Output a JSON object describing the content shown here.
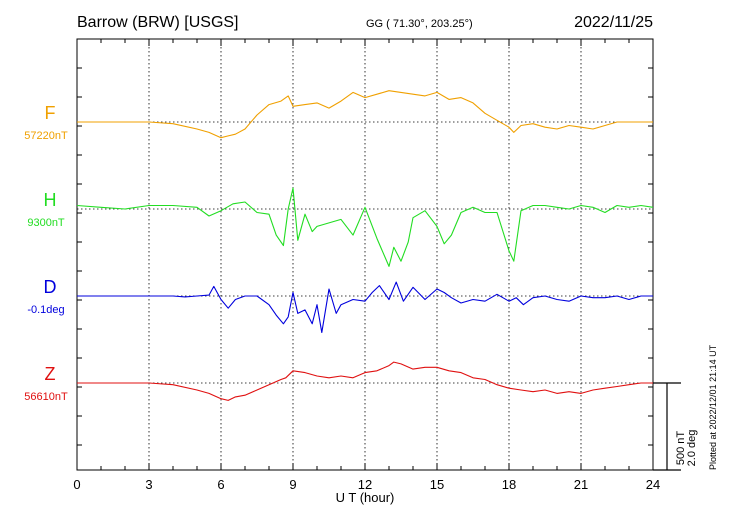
{
  "chart_data": {
    "type": "line",
    "header": {
      "station": "Barrow (BRW)  [USGS]",
      "coords": "GG ( 71.30°, 203.25°)",
      "date": "2022/11/25"
    },
    "xlabel": "U T (hour)",
    "xlim": [
      0,
      24
    ],
    "x_ticks": [
      0,
      3,
      6,
      9,
      12,
      15,
      18,
      21,
      24
    ],
    "grid": true,
    "scale_bar": {
      "line1": "500 nT",
      "line2": "2.0 deg"
    },
    "plotted_note": "Plotted at 2022/12/01 21:14 UT",
    "series": [
      {
        "name": "F",
        "baseline_label": "57220nT",
        "color": "#f0a000",
        "x": [
          0,
          1,
          2,
          3,
          4,
          5,
          5.5,
          6,
          6.3,
          6.6,
          7,
          7.5,
          8,
          8.5,
          8.8,
          9,
          9.5,
          10,
          10.5,
          11,
          11.5,
          12,
          12.5,
          13,
          13.5,
          14,
          14.5,
          15,
          15.5,
          16,
          16.5,
          17,
          17.5,
          18,
          18.2,
          18.5,
          19,
          19.5,
          20,
          20.5,
          21,
          21.5,
          22,
          22.5,
          23,
          23.5,
          24
        ],
        "y": [
          0,
          0,
          0,
          0,
          -10,
          -40,
          -60,
          -90,
          -80,
          -70,
          -40,
          40,
          100,
          120,
          150,
          90,
          100,
          110,
          80,
          120,
          170,
          140,
          160,
          180,
          170,
          160,
          150,
          170,
          130,
          140,
          110,
          50,
          10,
          -30,
          -60,
          -20,
          -10,
          -30,
          -40,
          -20,
          -30,
          -40,
          -20,
          0,
          0,
          0,
          0
        ]
      },
      {
        "name": "H",
        "baseline_label": "9300nT",
        "color": "#22dd22",
        "x": [
          0,
          1,
          2,
          3,
          4,
          5,
          5.5,
          6,
          6.5,
          7,
          7.5,
          8,
          8.3,
          8.6,
          8.8,
          9,
          9.2,
          9.5,
          9.8,
          10,
          10.5,
          11,
          11.5,
          12,
          12.5,
          13,
          13.2,
          13.5,
          13.8,
          14,
          14.5,
          15,
          15.3,
          15.6,
          16,
          16.5,
          17,
          17.5,
          18,
          18.2,
          18.5,
          19,
          19.5,
          20,
          20.5,
          21,
          21.5,
          22,
          22.5,
          23,
          23.5,
          24
        ],
        "y": [
          20,
          10,
          0,
          20,
          20,
          10,
          -40,
          -10,
          30,
          40,
          -20,
          -30,
          -150,
          -210,
          0,
          120,
          -180,
          -30,
          -130,
          -100,
          -80,
          -60,
          -150,
          10,
          -170,
          -330,
          -220,
          -300,
          -190,
          -50,
          -10,
          -100,
          -200,
          -150,
          -20,
          10,
          -20,
          -20,
          -240,
          -300,
          -10,
          20,
          20,
          10,
          0,
          20,
          10,
          -20,
          20,
          10,
          20,
          10
        ]
      },
      {
        "name": "D",
        "baseline_label": "-0.1deg",
        "color": "#0000dd",
        "x": [
          0,
          1,
          2,
          3,
          4,
          4.5,
          5,
          5.5,
          5.7,
          6,
          6.3,
          6.6,
          7,
          7.5,
          8,
          8.3,
          8.6,
          8.8,
          9,
          9.2,
          9.5,
          9.8,
          10,
          10.2,
          10.5,
          10.8,
          11,
          11.5,
          12,
          12.3,
          12.6,
          13,
          13.3,
          13.6,
          14,
          14.5,
          15,
          15.3,
          15.6,
          16,
          16.5,
          17,
          17.5,
          18,
          18.3,
          18.6,
          19,
          19.5,
          20,
          20.5,
          21,
          21.5,
          22,
          22.5,
          23,
          23.5,
          24
        ],
        "y": [
          0,
          0,
          0,
          0,
          0,
          -5,
          0,
          5,
          55,
          -20,
          -70,
          -20,
          0,
          0,
          -50,
          -110,
          -160,
          -120,
          20,
          -100,
          -80,
          -160,
          -50,
          -210,
          40,
          -100,
          -50,
          -20,
          -30,
          20,
          60,
          -20,
          80,
          -30,
          50,
          -20,
          40,
          20,
          -10,
          -40,
          -20,
          -30,
          10,
          -30,
          -10,
          -50,
          -10,
          0,
          -20,
          -30,
          0,
          -10,
          -10,
          0,
          -20,
          0,
          0
        ]
      },
      {
        "name": "Z",
        "baseline_label": "56610nT",
        "color": "#e01010",
        "x": [
          0,
          1,
          2,
          3,
          4,
          5,
          5.5,
          6,
          6.3,
          6.6,
          7,
          7.5,
          8,
          8.5,
          8.7,
          9,
          9.5,
          10,
          10.5,
          11,
          11.5,
          12,
          12.5,
          13,
          13.2,
          13.5,
          14,
          14.5,
          15,
          15.5,
          16,
          16.5,
          17,
          17.5,
          18,
          18.5,
          19,
          19.5,
          20,
          20.5,
          21,
          21.5,
          22,
          22.5,
          23,
          23.5,
          24
        ],
        "y": [
          0,
          0,
          0,
          0,
          -10,
          -40,
          -60,
          -90,
          -100,
          -80,
          -70,
          -40,
          -10,
          20,
          30,
          70,
          60,
          40,
          30,
          40,
          30,
          60,
          70,
          100,
          120,
          110,
          80,
          90,
          90,
          70,
          60,
          30,
          20,
          -10,
          -30,
          -40,
          -50,
          -40,
          -60,
          -50,
          -60,
          -40,
          -30,
          -20,
          -10,
          0,
          0
        ]
      }
    ]
  }
}
